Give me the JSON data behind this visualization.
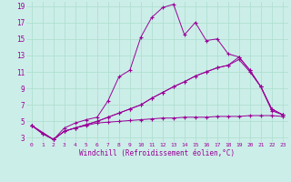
{
  "xlabel": "Windchill (Refroidissement éolien,°C)",
  "background_color": "#cceee8",
  "grid_color": "#aaddcc",
  "line_color": "#990099",
  "xlim": [
    -0.5,
    23.5
  ],
  "ylim": [
    2.5,
    19.5
  ],
  "yticks": [
    3,
    5,
    7,
    9,
    11,
    13,
    15,
    17,
    19
  ],
  "xticks": [
    0,
    1,
    2,
    3,
    4,
    5,
    6,
    7,
    8,
    9,
    10,
    11,
    12,
    13,
    14,
    15,
    16,
    17,
    18,
    19,
    20,
    21,
    22,
    23
  ],
  "series1": [
    [
      0,
      4.5
    ],
    [
      1,
      3.5
    ],
    [
      2,
      2.8
    ],
    [
      3,
      4.2
    ],
    [
      4,
      4.8
    ],
    [
      5,
      5.2
    ],
    [
      6,
      5.5
    ],
    [
      7,
      7.5
    ],
    [
      8,
      10.4
    ],
    [
      9,
      11.2
    ],
    [
      10,
      15.2
    ],
    [
      11,
      17.6
    ],
    [
      12,
      18.8
    ],
    [
      13,
      19.2
    ],
    [
      14,
      15.5
    ],
    [
      15,
      17.0
    ],
    [
      16,
      14.8
    ],
    [
      17,
      15.0
    ],
    [
      18,
      13.2
    ],
    [
      19,
      12.8
    ],
    [
      20,
      11.2
    ],
    [
      21,
      9.2
    ],
    [
      22,
      6.3
    ],
    [
      23,
      5.8
    ]
  ],
  "series2": [
    [
      0,
      4.5
    ],
    [
      1,
      3.5
    ],
    [
      2,
      2.8
    ],
    [
      3,
      3.8
    ],
    [
      4,
      4.2
    ],
    [
      5,
      4.5
    ],
    [
      6,
      4.8
    ],
    [
      7,
      4.9
    ],
    [
      8,
      5.0
    ],
    [
      9,
      5.1
    ],
    [
      10,
      5.2
    ],
    [
      11,
      5.3
    ],
    [
      12,
      5.4
    ],
    [
      13,
      5.4
    ],
    [
      14,
      5.5
    ],
    [
      15,
      5.5
    ],
    [
      16,
      5.5
    ],
    [
      17,
      5.6
    ],
    [
      18,
      5.6
    ],
    [
      19,
      5.6
    ],
    [
      20,
      5.7
    ],
    [
      21,
      5.7
    ],
    [
      22,
      5.7
    ],
    [
      23,
      5.6
    ]
  ],
  "series3": [
    [
      0,
      4.5
    ],
    [
      2,
      2.8
    ],
    [
      3,
      3.8
    ],
    [
      4,
      4.2
    ],
    [
      5,
      4.6
    ],
    [
      6,
      5.0
    ],
    [
      7,
      5.5
    ],
    [
      8,
      6.0
    ],
    [
      9,
      6.5
    ],
    [
      10,
      7.0
    ],
    [
      11,
      7.8
    ],
    [
      12,
      8.5
    ],
    [
      13,
      9.2
    ],
    [
      14,
      9.8
    ],
    [
      15,
      10.5
    ],
    [
      16,
      11.0
    ],
    [
      17,
      11.5
    ],
    [
      18,
      11.8
    ],
    [
      19,
      12.5
    ],
    [
      20,
      11.0
    ],
    [
      21,
      9.2
    ],
    [
      22,
      6.5
    ],
    [
      23,
      5.8
    ]
  ],
  "series4": [
    [
      0,
      4.5
    ],
    [
      2,
      2.8
    ],
    [
      3,
      3.8
    ],
    [
      4,
      4.2
    ],
    [
      5,
      4.6
    ],
    [
      6,
      5.0
    ],
    [
      7,
      5.5
    ],
    [
      8,
      6.0
    ],
    [
      9,
      6.5
    ],
    [
      10,
      7.0
    ],
    [
      11,
      7.8
    ],
    [
      12,
      8.5
    ],
    [
      13,
      9.2
    ],
    [
      14,
      9.8
    ],
    [
      15,
      10.5
    ],
    [
      16,
      11.0
    ],
    [
      17,
      11.5
    ],
    [
      18,
      11.8
    ],
    [
      19,
      12.8
    ],
    [
      20,
      11.2
    ],
    [
      21,
      9.2
    ],
    [
      22,
      6.5
    ],
    [
      23,
      5.8
    ]
  ]
}
